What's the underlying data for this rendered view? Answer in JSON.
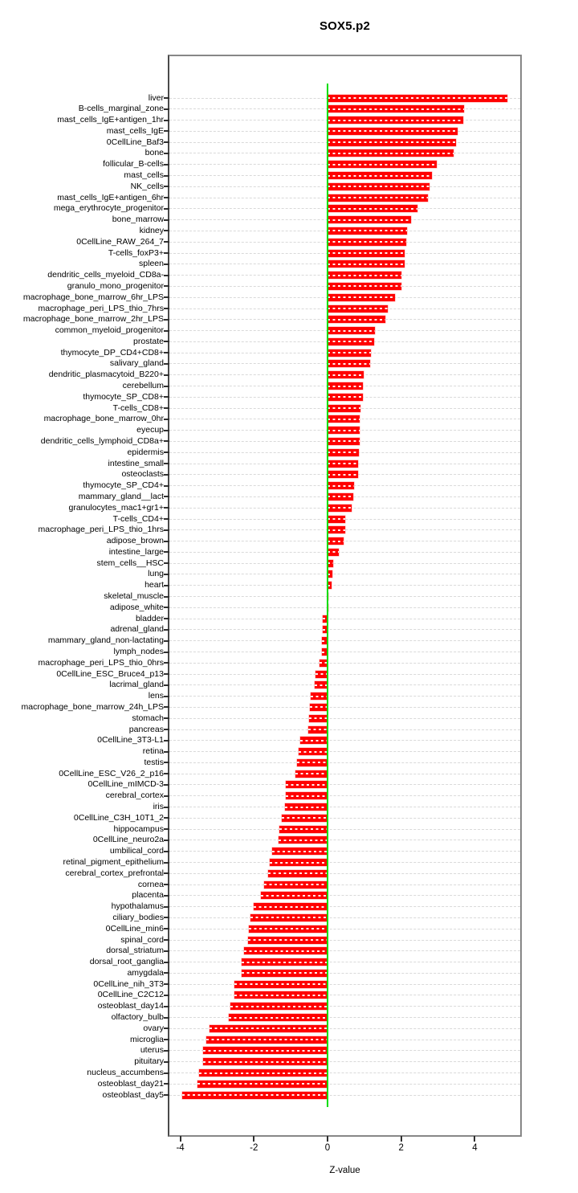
{
  "window": {
    "title": "SOX5.p2"
  },
  "chart_data": {
    "type": "bar",
    "orientation": "horizontal",
    "title": "SOX5.p2",
    "xlabel": "Z-value",
    "ylabel": "",
    "xlim": [
      -4.3,
      5.25
    ],
    "xticks": [
      -4,
      -2,
      0,
      2,
      4
    ],
    "grid": "dashed-horizontal-row-lines",
    "legend": "none",
    "bar_color": "#ff0000",
    "zero_line_color": "#00dd00",
    "axis_color": "#878787",
    "categories": [
      "liver",
      "B-cells_marginal_zone",
      "mast_cells_IgE+antigen_1hr",
      "mast_cells_IgE",
      "0CellLine_Baf3",
      "bone",
      "follicular_B-cells",
      "mast_cells",
      "NK_cells",
      "mast_cells_IgE+antigen_6hr",
      "mega_erythrocyte_progenitor",
      "bone_marrow",
      "kidney",
      "0CellLine_RAW_264_7",
      "T-cells_foxP3+",
      "spleen",
      "dendritic_cells_myeloid_CD8a-",
      "granulo_mono_progenitor",
      "macrophage_bone_marrow_6hr_LPS",
      "macrophage_peri_LPS_thio_7hrs",
      "macrophage_bone_marrow_2hr_LPS",
      "common_myeloid_progenitor",
      "prostate",
      "thymocyte_DP_CD4+CD8+",
      "salivary_gland",
      "dendritic_plasmacytoid_B220+",
      "cerebellum",
      "thymocyte_SP_CD8+",
      "T-cells_CD8+",
      "macrophage_bone_marrow_0hr",
      "eyecup",
      "dendritic_cells_lymphoid_CD8a+",
      "epidermis",
      "intestine_small",
      "osteoclasts",
      "thymocyte_SP_CD4+",
      "mammary_gland__lact",
      "granulocytes_mac1+gr1+",
      "T-cells_CD4+",
      "macrophage_peri_LPS_thio_1hrs",
      "adipose_brown",
      "intestine_large",
      "stem_cells__HSC",
      "lung",
      "heart",
      "skeletal_muscle",
      "adipose_white",
      "bladder",
      "adrenal_gland",
      "mammary_gland_non-lactating",
      "lymph_nodes",
      "macrophage_peri_LPS_thio_0hrs",
      "0CellLine_ESC_Bruce4_p13",
      "lacrimal_gland",
      "lens",
      "macrophage_bone_marrow_24h_LPS",
      "stomach",
      "pancreas",
      "0CellLine_3T3-L1",
      "retina",
      "testis",
      "0CellLine_ESC_V26_2_p16",
      "0CellLine_mIMCD-3",
      "cerebral_cortex",
      "iris",
      "0CellLine_C3H_10T1_2",
      "hippocampus",
      "0CellLine_neuro2a",
      "umbilical_cord",
      "retinal_pigment_epithelium",
      "cerebral_cortex_prefrontal",
      "cornea",
      "placenta",
      "hypothalamus",
      "ciliary_bodies",
      "0CellLine_min6",
      "spinal_cord",
      "dorsal_striatum",
      "dorsal_root_ganglia",
      "amygdala",
      "0CellLine_nih_3T3",
      "0CellLine_C2C12",
      "osteoblast_day14",
      "olfactory_bulb",
      "ovary",
      "microglia",
      "uterus",
      "pituitary",
      "nucleus_accumbens",
      "osteoblast_day21",
      "osteoblast_day5"
    ],
    "values": [
      4.89,
      3.71,
      3.69,
      3.53,
      3.49,
      3.42,
      2.96,
      2.84,
      2.77,
      2.73,
      2.44,
      2.27,
      2.16,
      2.13,
      2.1,
      2.09,
      2.01,
      2.0,
      1.83,
      1.64,
      1.56,
      1.28,
      1.27,
      1.17,
      1.16,
      0.98,
      0.96,
      0.95,
      0.89,
      0.88,
      0.88,
      0.88,
      0.85,
      0.82,
      0.82,
      0.73,
      0.69,
      0.66,
      0.49,
      0.47,
      0.43,
      0.31,
      0.15,
      0.13,
      0.11,
      0.03,
      -0.01,
      -0.12,
      -0.13,
      -0.15,
      -0.16,
      -0.21,
      -0.32,
      -0.35,
      -0.45,
      -0.49,
      -0.5,
      -0.52,
      -0.75,
      -0.79,
      -0.82,
      -0.88,
      -1.13,
      -1.14,
      -1.16,
      -1.24,
      -1.3,
      -1.32,
      -1.51,
      -1.56,
      -1.62,
      -1.72,
      -1.81,
      -2.01,
      -2.1,
      -2.14,
      -2.15,
      -2.26,
      -2.33,
      -2.34,
      -2.52,
      -2.53,
      -2.63,
      -2.69,
      -3.21,
      -3.29,
      -3.37,
      -3.38,
      -3.5,
      -3.53,
      -3.94
    ]
  }
}
